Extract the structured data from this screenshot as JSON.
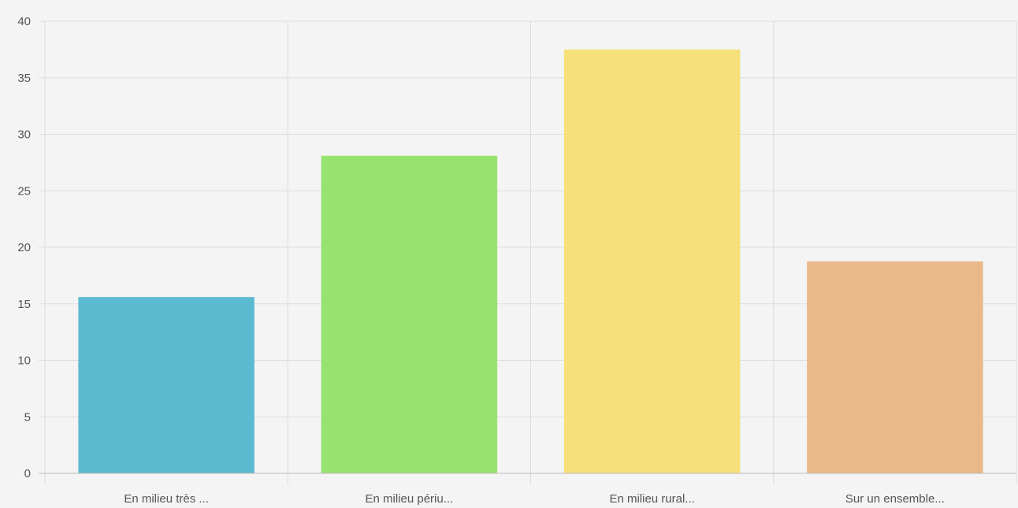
{
  "chart_data": {
    "type": "bar",
    "title": "",
    "xlabel": "",
    "ylabel": "",
    "categories": [
      "En milieu très ...",
      "En milieu périu...",
      "En milieu rural...",
      "Sur un ensemble..."
    ],
    "values": [
      15.6,
      28.1,
      37.5,
      18.75
    ],
    "ylim": [
      0,
      40
    ],
    "yticks": [
      0,
      5,
      10,
      15,
      20,
      25,
      30,
      35,
      40
    ],
    "bar_colors": [
      "#5bbad0",
      "#98e270",
      "#f6e07a",
      "#e9b98b"
    ],
    "grid": true,
    "legend": "none"
  }
}
